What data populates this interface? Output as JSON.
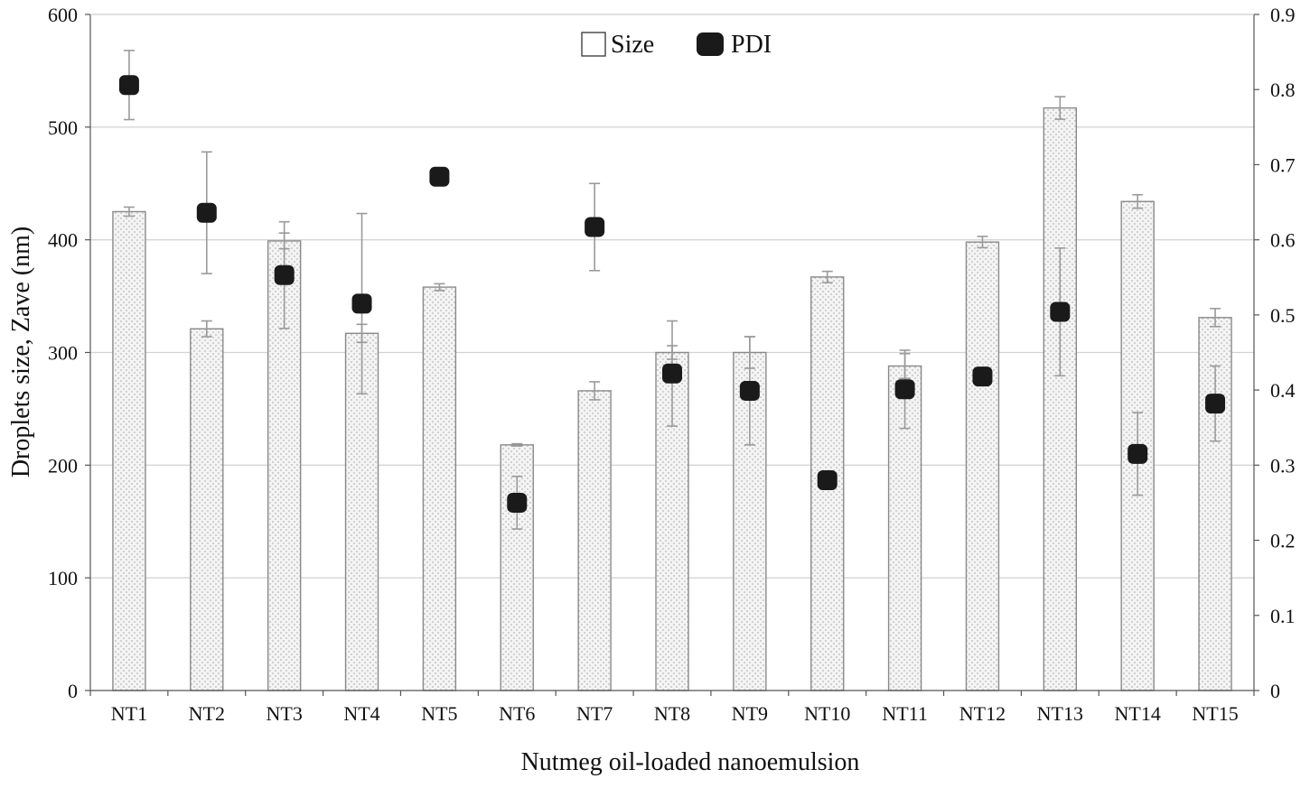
{
  "chart_data": {
    "type": "bar",
    "categories": [
      "NT1",
      "NT2",
      "NT3",
      "NT4",
      "NT5",
      "NT6",
      "NT7",
      "NT8",
      "NT9",
      "NT10",
      "NT11",
      "NT12",
      "NT13",
      "NT14",
      "NT15"
    ],
    "series": [
      {
        "name": "Size",
        "kind": "bar",
        "axis": "left",
        "values": [
          425,
          321,
          399,
          317,
          358,
          218,
          266,
          300,
          300,
          367,
          288,
          398,
          517,
          434,
          331
        ],
        "errors": [
          4,
          7,
          7,
          8,
          3,
          1,
          8,
          6,
          14,
          5,
          11,
          5,
          10,
          6,
          8
        ]
      },
      {
        "name": "PDI",
        "kind": "scatter",
        "axis": "right",
        "values": [
          0.806,
          0.636,
          0.553,
          0.515,
          0.684,
          0.25,
          0.617,
          0.422,
          0.399,
          0.28,
          0.401,
          0.418,
          0.504,
          0.315,
          0.382
        ],
        "errors": [
          0.046,
          0.081,
          0.071,
          0.12,
          0.0,
          0.035,
          0.058,
          0.07,
          0.072,
          0.0,
          0.052,
          0.0,
          0.085,
          0.055,
          0.05
        ]
      }
    ],
    "title": "",
    "xlabel": "Nutmeg oil-loaded nanoemulsion",
    "ylabel": "Droplets size, Zave (nm)",
    "ylabel_right": "",
    "ylim": [
      0,
      600
    ],
    "ylim_right": [
      0,
      0.9
    ],
    "yticks": [
      "0",
      "100",
      "200",
      "300",
      "400",
      "500",
      "600"
    ],
    "yticks_right": [
      "0",
      "0.1",
      "0.2",
      "0.3",
      "0.4",
      "0.5",
      "0.6",
      "0.7",
      "0.8",
      "0.9"
    ],
    "grid": true,
    "legend_position": "top-center",
    "colors": {
      "bar_fill": "#f4f4f4",
      "bar_dots": "#b5b5b5",
      "bar_edge": "#8a8a8a",
      "marker": "#1a1a1a",
      "grid": "#d4d4d4",
      "error_bar": "#9a9a9a",
      "ylabel_color": "#5a3010"
    }
  }
}
